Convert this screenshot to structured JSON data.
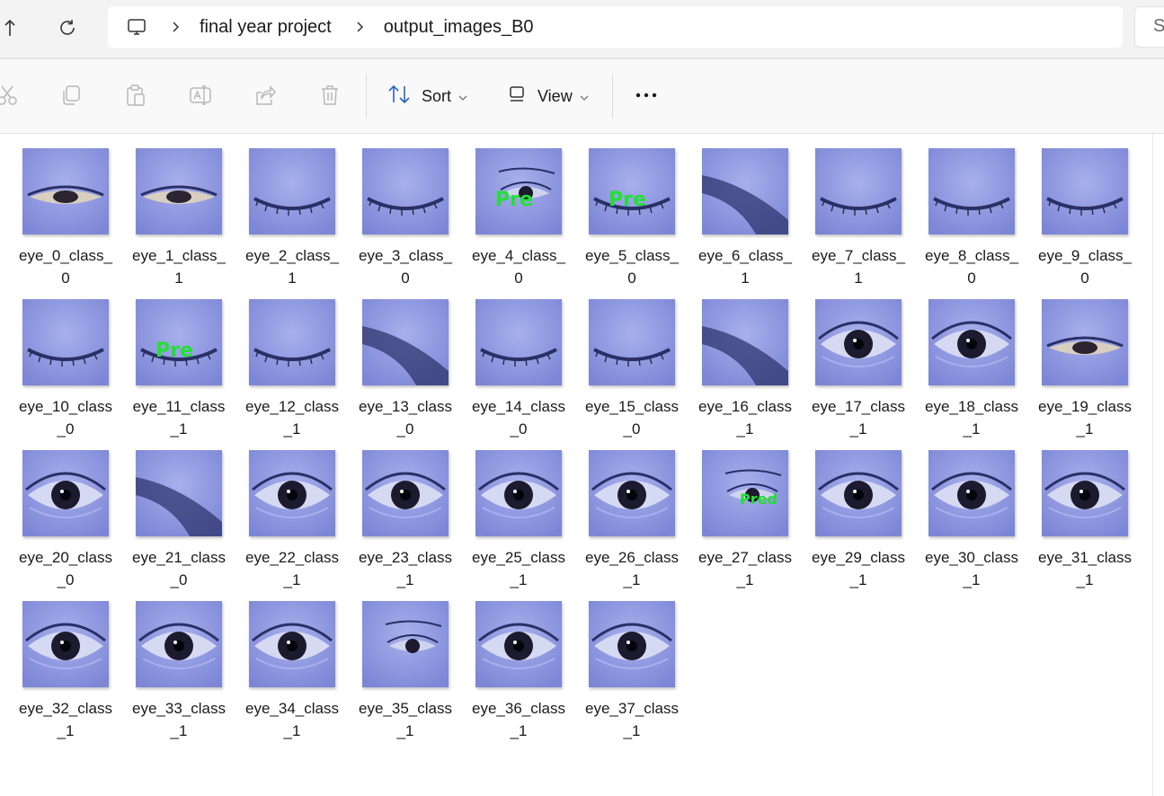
{
  "address": {
    "crumbs": [
      "final year project",
      "output_images_B0"
    ],
    "search_placeholder": "S"
  },
  "toolbar": {
    "sort_label": "Sort",
    "view_label": "View"
  },
  "files": [
    {
      "line1": "eye_0_class_",
      "line2": "0",
      "state": "half",
      "overlay": ""
    },
    {
      "line1": "eye_1_class_",
      "line2": "1",
      "state": "half",
      "overlay": ""
    },
    {
      "line1": "eye_2_class_",
      "line2": "1",
      "state": "closed",
      "overlay": ""
    },
    {
      "line1": "eye_3_class_",
      "line2": "0",
      "state": "closed",
      "overlay": ""
    },
    {
      "line1": "eye_4_class_",
      "line2": "0",
      "state": "small",
      "overlay": "Pre"
    },
    {
      "line1": "eye_5_class_",
      "line2": "0",
      "state": "closed",
      "overlay": "Pre"
    },
    {
      "line1": "eye_6_class_",
      "line2": "1",
      "state": "dark",
      "overlay": ""
    },
    {
      "line1": "eye_7_class_",
      "line2": "1",
      "state": "closed",
      "overlay": ""
    },
    {
      "line1": "eye_8_class_",
      "line2": "0",
      "state": "closed",
      "overlay": ""
    },
    {
      "line1": "eye_9_class_",
      "line2": "0",
      "state": "closed",
      "overlay": ""
    },
    {
      "line1": "eye_10_class",
      "line2": "_0",
      "state": "closed",
      "overlay": ""
    },
    {
      "line1": "eye_11_class",
      "line2": "_1",
      "state": "closed",
      "overlay": "Pre"
    },
    {
      "line1": "eye_12_class",
      "line2": "_1",
      "state": "closed",
      "overlay": ""
    },
    {
      "line1": "eye_13_class",
      "line2": "_0",
      "state": "dark",
      "overlay": ""
    },
    {
      "line1": "eye_14_class",
      "line2": "_0",
      "state": "closed",
      "overlay": ""
    },
    {
      "line1": "eye_15_class",
      "line2": "_0",
      "state": "closed",
      "overlay": ""
    },
    {
      "line1": "eye_16_class",
      "line2": "_1",
      "state": "dark",
      "overlay": ""
    },
    {
      "line1": "eye_17_class",
      "line2": "_1",
      "state": "open",
      "overlay": ""
    },
    {
      "line1": "eye_18_class",
      "line2": "_1",
      "state": "open",
      "overlay": ""
    },
    {
      "line1": "eye_19_class",
      "line2": "_1",
      "state": "half",
      "overlay": ""
    },
    {
      "line1": "eye_20_class",
      "line2": "_0",
      "state": "open",
      "overlay": ""
    },
    {
      "line1": "eye_21_class",
      "line2": "_0",
      "state": "dark",
      "overlay": ""
    },
    {
      "line1": "eye_22_class",
      "line2": "_1",
      "state": "open",
      "overlay": ""
    },
    {
      "line1": "eye_23_class",
      "line2": "_1",
      "state": "open",
      "overlay": ""
    },
    {
      "line1": "eye_25_class",
      "line2": "_1",
      "state": "open",
      "overlay": ""
    },
    {
      "line1": "eye_26_class",
      "line2": "_1",
      "state": "open",
      "overlay": ""
    },
    {
      "line1": "eye_27_class",
      "line2": "_1",
      "state": "small",
      "overlay": "Pred"
    },
    {
      "line1": "eye_29_class",
      "line2": "_1",
      "state": "open",
      "overlay": ""
    },
    {
      "line1": "eye_30_class",
      "line2": "_1",
      "state": "open",
      "overlay": ""
    },
    {
      "line1": "eye_31_class",
      "line2": "_1",
      "state": "open",
      "overlay": ""
    },
    {
      "line1": "eye_32_class",
      "line2": "_1",
      "state": "open",
      "overlay": ""
    },
    {
      "line1": "eye_33_class",
      "line2": "_1",
      "state": "open",
      "overlay": ""
    },
    {
      "line1": "eye_34_class",
      "line2": "_1",
      "state": "open",
      "overlay": ""
    },
    {
      "line1": "eye_35_class",
      "line2": "_1",
      "state": "small",
      "overlay": ""
    },
    {
      "line1": "eye_36_class",
      "line2": "_1",
      "state": "open",
      "overlay": ""
    },
    {
      "line1": "eye_37_class",
      "line2": "_1",
      "state": "open",
      "overlay": ""
    }
  ],
  "colors": {
    "thumb_base": "#7c86d6",
    "thumb_light": "#a8b0ec",
    "thumb_dark": "#2a2f66",
    "overlay_text": "#22e033"
  }
}
